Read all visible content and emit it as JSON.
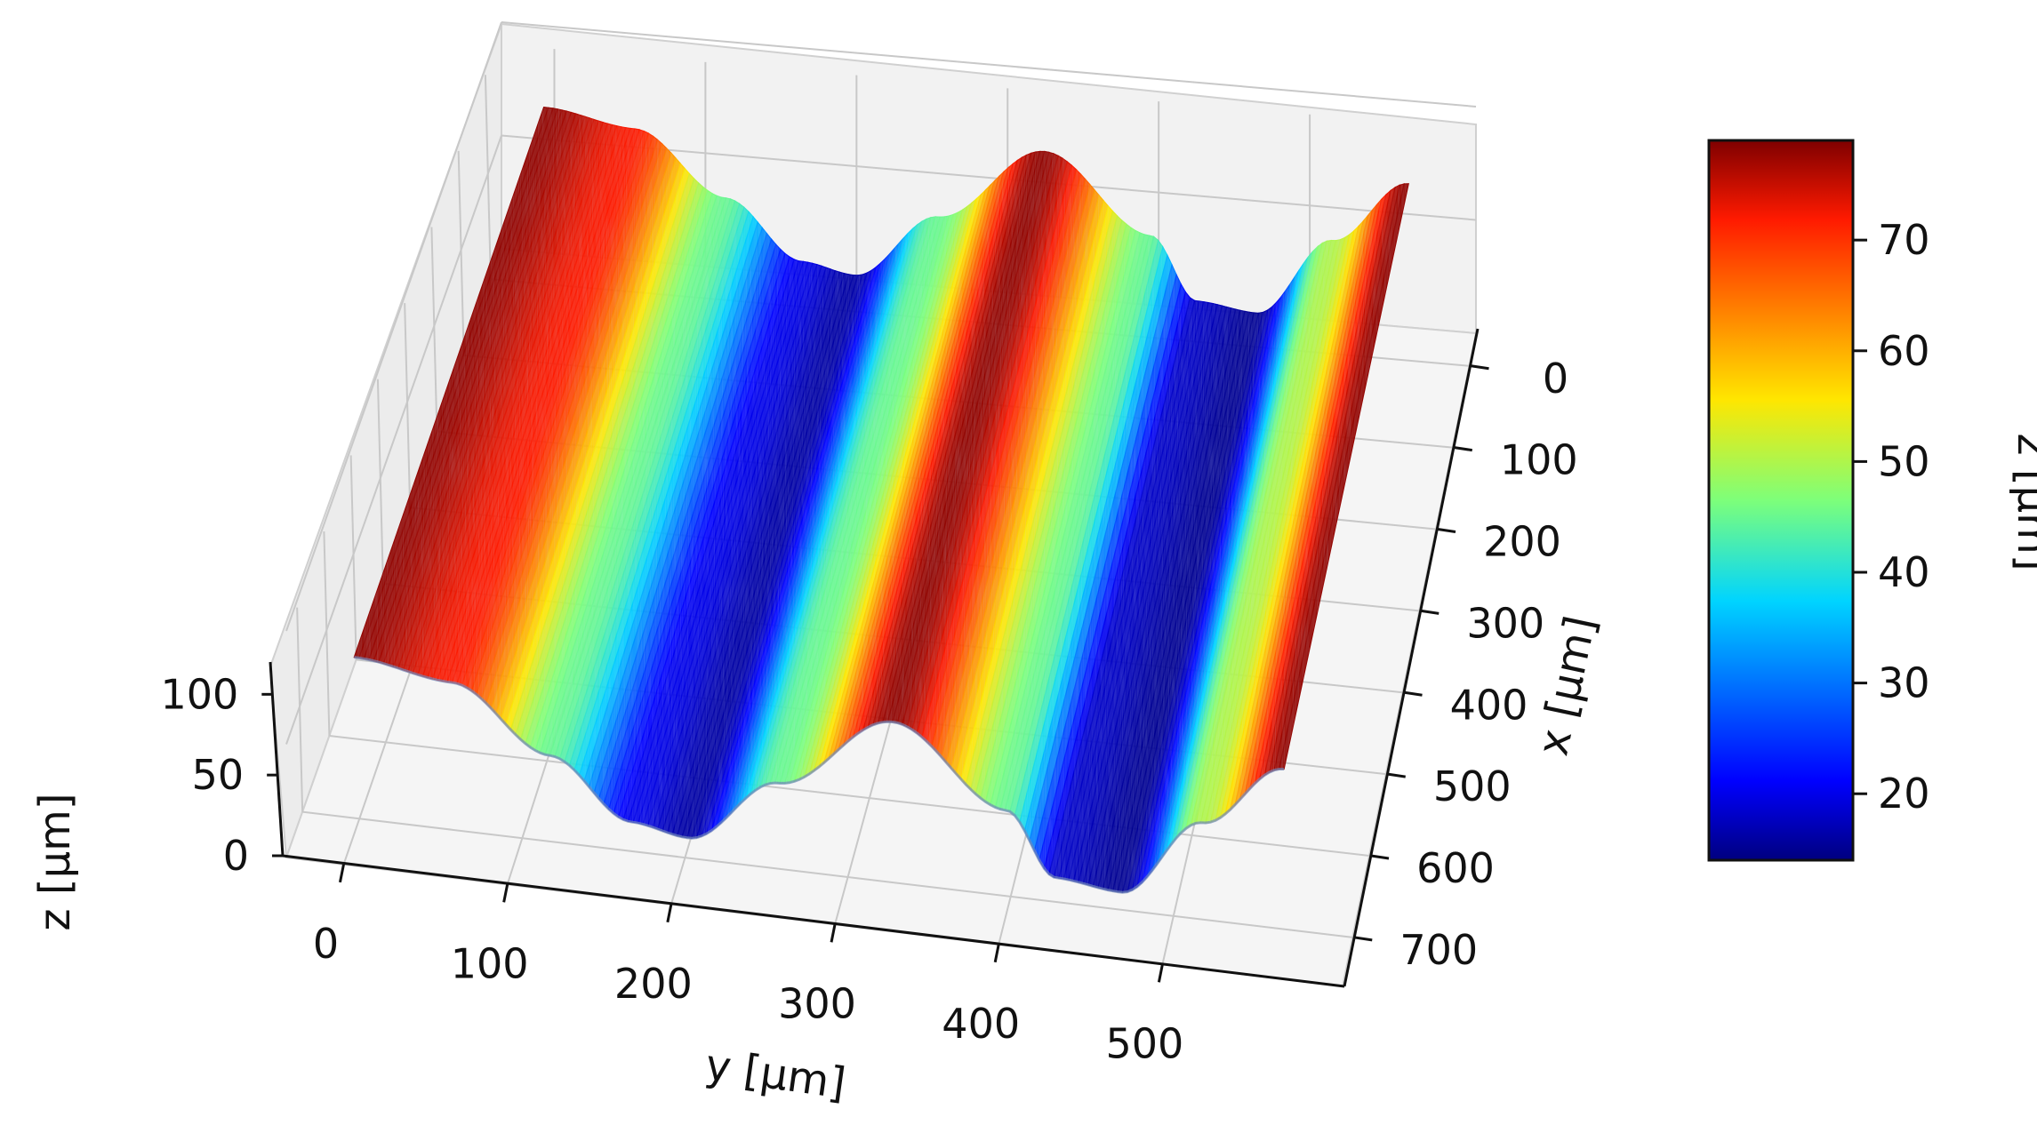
{
  "chart_data": {
    "type": "surface3d",
    "title": "",
    "x_axis": {
      "label": "x [μm]",
      "range": [
        0,
        700
      ],
      "ticks": [
        "0",
        "100",
        "200",
        "300",
        "400",
        "500",
        "600",
        "700"
      ]
    },
    "y_axis": {
      "label": "y [μm]",
      "range": [
        0,
        570
      ],
      "ticks": [
        "0",
        "100",
        "200",
        "300",
        "400",
        "500"
      ]
    },
    "z_axis": {
      "label": "z [μm]",
      "range": [
        0,
        110
      ],
      "ticks": [
        "0",
        "50",
        "100"
      ]
    },
    "surface": {
      "description_profile_y": [
        0,
        60,
        120,
        170,
        205,
        260,
        330,
        400,
        430,
        470,
        520,
        570
      ],
      "description_profile_z": [
        78,
        72,
        45,
        20,
        16,
        45,
        78,
        45,
        18,
        15,
        50,
        78
      ],
      "x_extent": [
        0,
        720
      ]
    },
    "colorbar": {
      "label": "z [μm]",
      "range": [
        14,
        79
      ],
      "ticks": [
        "20",
        "30",
        "40",
        "50",
        "60",
        "70"
      ],
      "colormap": "jet"
    },
    "grid": true
  }
}
